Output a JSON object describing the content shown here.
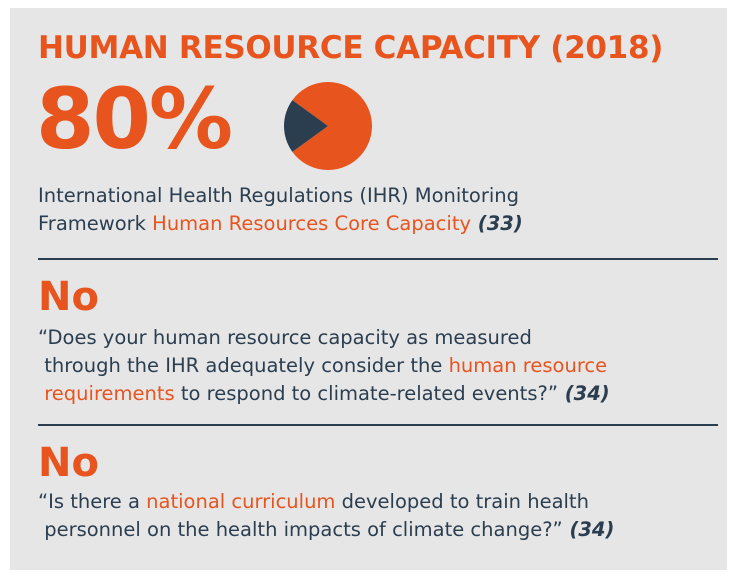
{
  "header": {
    "title": "HUMAN RESOURCE CAPACITY (2018)"
  },
  "stat": {
    "value": 80,
    "label": "80%",
    "color": "#e8541e",
    "rest_color": "#2b3e50"
  },
  "description": {
    "lines": [
      [
        {
          "text": "International Health Regulations (IHR) Monitoring",
          "tone": "plain"
        }
      ],
      [
        {
          "text": "Framework ",
          "tone": "plain"
        },
        {
          "text": "Human Resources Core Capacity",
          "tone": "highlight"
        },
        {
          "text": " (33)",
          "tone": "cite"
        }
      ]
    ]
  },
  "questions": [
    {
      "answer": "No",
      "lines": [
        [
          {
            "text": "“Does your human resource capacity as measured",
            "tone": "plain"
          }
        ],
        [
          {
            "text": " through the IHR adequately consider the ",
            "tone": "plain"
          },
          {
            "text": "human resource",
            "tone": "highlight"
          }
        ],
        [
          {
            "text": " requirements",
            "tone": "highlight"
          },
          {
            "text": " to respond to climate-related events?”",
            "tone": "plain"
          },
          {
            "text": " (34)",
            "tone": "cite"
          }
        ]
      ]
    },
    {
      "answer": "No",
      "lines": [
        [
          {
            "text": "“Is there a ",
            "tone": "plain"
          },
          {
            "text": "national curriculum",
            "tone": "highlight"
          },
          {
            "text": " developed to train health",
            "tone": "plain"
          }
        ],
        [
          {
            "text": " personnel on the health impacts of climate change?”",
            "tone": "plain"
          },
          {
            "text": " (34)",
            "tone": "cite"
          }
        ]
      ]
    }
  ]
}
